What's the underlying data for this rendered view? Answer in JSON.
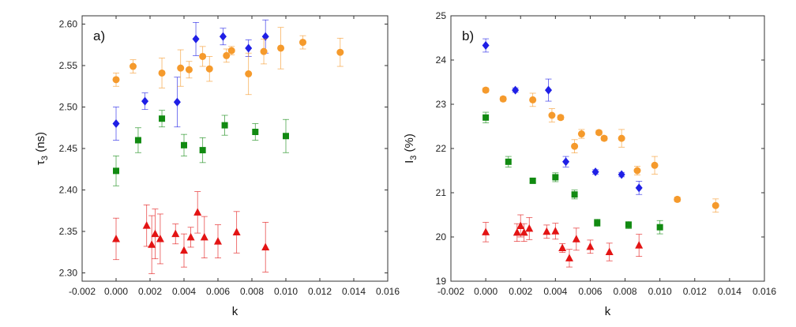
{
  "colors": {
    "blue": "#1f1fe6",
    "orange": "#f59a2c",
    "green": "#118a11",
    "red": "#e31414",
    "axis": "#333333"
  },
  "chart_data": [
    {
      "type": "scatter",
      "panel_label": "a)",
      "xlabel": "k",
      "ylabel_main": "τ",
      "ylabel_sub": "3",
      "ylabel_unit": " (ns)",
      "xlim": [
        -0.002,
        0.016
      ],
      "ylim": [
        2.29,
        2.61
      ],
      "xticks": [
        -0.002,
        0.0,
        0.002,
        0.004,
        0.006,
        0.008,
        0.01,
        0.012,
        0.014,
        0.016
      ],
      "xtick_labels": [
        "-0.002",
        "0.000",
        "0.002",
        "0.004",
        "0.006",
        "0.008",
        "0.010",
        "0.012",
        "0.014",
        "0.016"
      ],
      "yticks": [
        2.3,
        2.35,
        2.4,
        2.45,
        2.5,
        2.55,
        2.6
      ],
      "ytick_labels": [
        "2.30",
        "2.35",
        "2.40",
        "2.45",
        "2.50",
        "2.55",
        "2.60"
      ],
      "series": [
        {
          "name": "diamond",
          "marker": "diamond",
          "color": "blue",
          "x": [
            0.0,
            0.0017,
            0.0036,
            0.0047,
            0.0063,
            0.0078,
            0.0088
          ],
          "y": [
            2.48,
            2.507,
            2.506,
            2.582,
            2.585,
            2.571,
            2.585
          ],
          "err": [
            0.02,
            0.01,
            0.03,
            0.02,
            0.01,
            0.01,
            0.02
          ]
        },
        {
          "name": "circle",
          "marker": "circle",
          "color": "orange",
          "x": [
            0.0,
            0.001,
            0.0027,
            0.0038,
            0.0043,
            0.0051,
            0.0055,
            0.0065,
            0.0068,
            0.0078,
            0.0087,
            0.0097,
            0.011,
            0.0132
          ],
          "y": [
            2.533,
            2.549,
            2.541,
            2.547,
            2.545,
            2.561,
            2.546,
            2.562,
            2.568,
            2.54,
            2.567,
            2.571,
            2.578,
            2.566
          ],
          "err": [
            0.008,
            0.008,
            0.018,
            0.022,
            0.01,
            0.012,
            0.015,
            0.008,
            0.005,
            0.025,
            0.015,
            0.025,
            0.008,
            0.017
          ]
        },
        {
          "name": "square",
          "marker": "square",
          "color": "green",
          "x": [
            0.0,
            0.0013,
            0.0027,
            0.004,
            0.0051,
            0.0064,
            0.0082,
            0.01
          ],
          "y": [
            2.423,
            2.46,
            2.486,
            2.454,
            2.448,
            2.478,
            2.47,
            2.465
          ],
          "err": [
            0.018,
            0.015,
            0.01,
            0.013,
            0.015,
            0.012,
            0.01,
            0.02
          ]
        },
        {
          "name": "triangle",
          "marker": "triangle",
          "color": "red",
          "x": [
            0.0,
            0.0018,
            0.0021,
            0.0023,
            0.0026,
            0.0035,
            0.004,
            0.0044,
            0.0048,
            0.0052,
            0.006,
            0.0071,
            0.0088
          ],
          "y": [
            2.341,
            2.357,
            2.334,
            2.347,
            2.341,
            2.347,
            2.327,
            2.343,
            2.373,
            2.343,
            2.338,
            2.349,
            2.331
          ],
          "err": [
            0.025,
            0.025,
            0.035,
            0.03,
            0.03,
            0.012,
            0.02,
            0.012,
            0.025,
            0.025,
            0.02,
            0.025,
            0.03
          ]
        }
      ]
    },
    {
      "type": "scatter",
      "panel_label": "b)",
      "xlabel": "k",
      "ylabel_main": "I",
      "ylabel_sub": "3",
      "ylabel_unit": " (%)",
      "xlim": [
        -0.002,
        0.016
      ],
      "ylim": [
        19,
        25
      ],
      "xticks": [
        -0.002,
        0.0,
        0.002,
        0.004,
        0.006,
        0.008,
        0.01,
        0.012,
        0.014,
        0.016
      ],
      "xtick_labels": [
        "-0.002",
        "0.000",
        "0.002",
        "0.004",
        "0.006",
        "0.008",
        "0.010",
        "0.012",
        "0.014",
        "0.016"
      ],
      "yticks": [
        19,
        20,
        21,
        22,
        23,
        24,
        25
      ],
      "ytick_labels": [
        "19",
        "20",
        "21",
        "22",
        "23",
        "24",
        "25"
      ],
      "series": [
        {
          "name": "diamond",
          "marker": "diamond",
          "color": "blue",
          "x": [
            0.0,
            0.0017,
            0.0036,
            0.0046,
            0.0063,
            0.0078,
            0.0088
          ],
          "y": [
            24.33,
            23.32,
            23.32,
            21.7,
            21.47,
            21.41,
            21.11
          ],
          "err": [
            0.15,
            0.05,
            0.25,
            0.12,
            0.05,
            0.05,
            0.15
          ]
        },
        {
          "name": "circle",
          "marker": "circle",
          "color": "orange",
          "x": [
            0.0,
            0.001,
            0.0027,
            0.0038,
            0.0043,
            0.0051,
            0.0055,
            0.0065,
            0.0068,
            0.0078,
            0.0087,
            0.0097,
            0.011,
            0.0132
          ],
          "y": [
            23.32,
            23.12,
            23.1,
            22.75,
            22.7,
            22.05,
            22.33,
            22.36,
            22.23,
            22.23,
            21.5,
            21.62,
            20.85,
            20.71
          ],
          "err": [
            0.05,
            0.05,
            0.15,
            0.15,
            0.05,
            0.15,
            0.1,
            0.05,
            0.05,
            0.2,
            0.1,
            0.2,
            0.05,
            0.15
          ]
        },
        {
          "name": "square",
          "marker": "square",
          "color": "green",
          "x": [
            0.0,
            0.0013,
            0.0027,
            0.004,
            0.0051,
            0.0064,
            0.0082,
            0.01
          ],
          "y": [
            22.7,
            21.7,
            21.27,
            21.35,
            20.96,
            20.32,
            20.27,
            20.22
          ],
          "err": [
            0.12,
            0.12,
            0.05,
            0.1,
            0.1,
            0.08,
            0.08,
            0.15
          ]
        },
        {
          "name": "triangle",
          "marker": "triangle",
          "color": "red",
          "x": [
            0.0,
            0.0018,
            0.002,
            0.0022,
            0.0025,
            0.0035,
            0.004,
            0.0044,
            0.0048,
            0.0052,
            0.006,
            0.0071,
            0.0088
          ],
          "y": [
            20.11,
            20.1,
            20.25,
            20.1,
            20.19,
            20.12,
            20.13,
            19.75,
            19.52,
            19.95,
            19.78,
            19.66,
            19.81
          ],
          "err": [
            0.22,
            0.2,
            0.25,
            0.2,
            0.25,
            0.15,
            0.18,
            0.1,
            0.2,
            0.25,
            0.15,
            0.2,
            0.25
          ]
        }
      ]
    }
  ]
}
